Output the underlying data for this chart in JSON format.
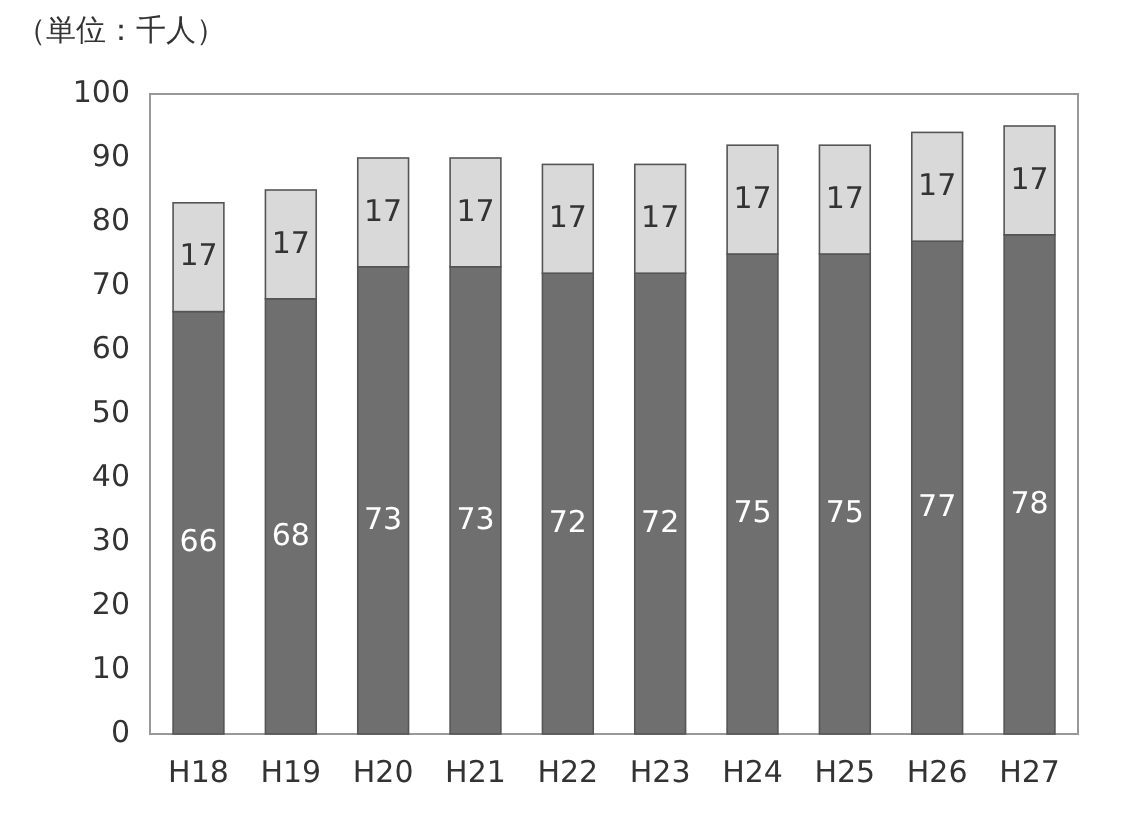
{
  "chart_data": {
    "type": "bar",
    "ylabel": "（単位：千人）",
    "categories": [
      "H18",
      "H19",
      "H20",
      "H21",
      "H22",
      "H23",
      "H24",
      "H25",
      "H26",
      "H27"
    ],
    "series": [
      {
        "color": "#6f6f6f",
        "values": [
          66,
          68,
          73,
          73,
          72,
          72,
          75,
          75,
          77,
          78
        ]
      },
      {
        "color": "#d9d9d9",
        "values": [
          17,
          17,
          17,
          17,
          17,
          17,
          17,
          17,
          17,
          17
        ]
      }
    ],
    "stacked": true,
    "ylim": [
      0,
      100
    ],
    "yticks": [
      0,
      10,
      20,
      30,
      40,
      50,
      60,
      70,
      80,
      90,
      100
    ],
    "data_labels": true,
    "grid": false
  }
}
